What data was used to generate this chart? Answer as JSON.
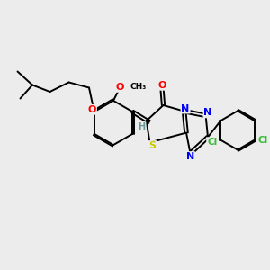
{
  "bg_color": "#ececec",
  "bond_color": "#000000",
  "atom_colors": {
    "O": "#ff0000",
    "S": "#cccc00",
    "N": "#0000ff",
    "Cl": "#33bb33",
    "H": "#669999",
    "C": "#000000"
  },
  "figsize": [
    3.0,
    3.0
  ],
  "dpi": 100
}
